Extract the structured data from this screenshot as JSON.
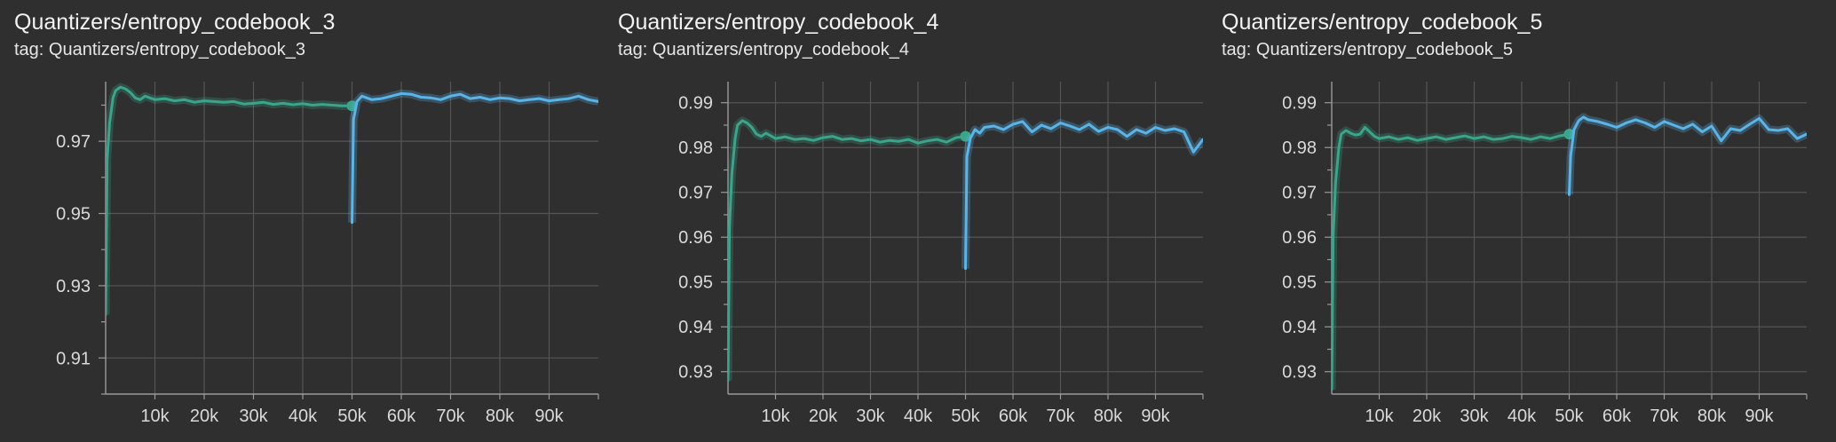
{
  "colors": {
    "background": "#2f2f2f",
    "grid": "#555555",
    "axis": "#9a9a9a",
    "run_a": "#3aa58a",
    "run_b": "#5ab4e8"
  },
  "chart_data": [
    {
      "type": "line",
      "title": "Quantizers/entropy_codebook_3",
      "tag": "tag: Quantizers/entropy_codebook_3",
      "xlim": [
        0,
        100000
      ],
      "ylim": [
        0.9,
        0.9865
      ],
      "x_ticks": [
        10000,
        20000,
        30000,
        40000,
        50000,
        60000,
        70000,
        80000,
        90000
      ],
      "x_tick_labels": [
        "10k",
        "20k",
        "30k",
        "40k",
        "50k",
        "60k",
        "70k",
        "80k",
        "90k"
      ],
      "y_major_ticks": [
        0.91,
        0.93,
        0.95,
        0.97
      ],
      "y_tick_labels": [
        "0.91",
        "0.93",
        "0.95",
        "0.97"
      ],
      "y_minor_ticks": [
        0.9,
        0.92,
        0.94,
        0.96,
        0.98
      ],
      "grid": true,
      "series": [
        {
          "color_key": "run_a",
          "x": [
            0,
            300,
            800,
            1500,
            2000,
            3000,
            4000,
            5000,
            6000,
            7000,
            8000,
            9000,
            10000,
            12000,
            14000,
            16000,
            18000,
            20000,
            22000,
            24000,
            26000,
            28000,
            30000,
            32000,
            34000,
            36000,
            38000,
            40000,
            42000,
            44000,
            46000,
            48000,
            50000
          ],
          "y": [
            0.922,
            0.965,
            0.975,
            0.982,
            0.984,
            0.985,
            0.9845,
            0.9835,
            0.982,
            0.9815,
            0.9825,
            0.982,
            0.9815,
            0.9818,
            0.9812,
            0.9815,
            0.9808,
            0.9812,
            0.981,
            0.9808,
            0.981,
            0.9803,
            0.9805,
            0.9808,
            0.9802,
            0.9805,
            0.9801,
            0.9804,
            0.98,
            0.9802,
            0.98,
            0.9798,
            0.9798
          ]
        },
        {
          "color_key": "run_b",
          "x": [
            50000,
            50300,
            51000,
            52000,
            53000,
            54000,
            56000,
            58000,
            60000,
            62000,
            64000,
            66000,
            68000,
            70000,
            72000,
            74000,
            76000,
            78000,
            80000,
            82000,
            84000,
            86000,
            88000,
            90000,
            92000,
            94000,
            96000,
            98000,
            100000
          ],
          "y": [
            0.9475,
            0.976,
            0.981,
            0.9825,
            0.982,
            0.9815,
            0.9818,
            0.9825,
            0.9832,
            0.983,
            0.9822,
            0.982,
            0.9815,
            0.9825,
            0.983,
            0.9818,
            0.9822,
            0.9815,
            0.982,
            0.9818,
            0.9812,
            0.9815,
            0.9818,
            0.9812,
            0.9815,
            0.9818,
            0.9825,
            0.9815,
            0.981
          ]
        }
      ]
    },
    {
      "type": "line",
      "title": "Quantizers/entropy_codebook_4",
      "tag": "tag: Quantizers/entropy_codebook_4",
      "xlim": [
        0,
        100000
      ],
      "ylim": [
        0.925,
        0.9947
      ],
      "x_ticks": [
        10000,
        20000,
        30000,
        40000,
        50000,
        60000,
        70000,
        80000,
        90000
      ],
      "x_tick_labels": [
        "10k",
        "20k",
        "30k",
        "40k",
        "50k",
        "60k",
        "70k",
        "80k",
        "90k"
      ],
      "y_major_ticks": [
        0.93,
        0.94,
        0.95,
        0.96,
        0.97,
        0.98,
        0.99
      ],
      "y_tick_labels": [
        "0.93",
        "0.94",
        "0.95",
        "0.96",
        "0.97",
        "0.98",
        "0.99"
      ],
      "y_minor_ticks": [
        0.935,
        0.945,
        0.955,
        0.965,
        0.975,
        0.985
      ],
      "grid": true,
      "series": [
        {
          "color_key": "run_a",
          "x": [
            0,
            300,
            800,
            1500,
            2000,
            3000,
            4000,
            5000,
            6000,
            7000,
            8000,
            9000,
            10000,
            12000,
            14000,
            16000,
            18000,
            20000,
            22000,
            24000,
            26000,
            28000,
            30000,
            32000,
            34000,
            36000,
            38000,
            40000,
            42000,
            44000,
            46000,
            48000,
            50000
          ],
          "y": [
            0.928,
            0.962,
            0.974,
            0.982,
            0.985,
            0.986,
            0.9855,
            0.9845,
            0.983,
            0.9825,
            0.9832,
            0.9826,
            0.982,
            0.9824,
            0.9818,
            0.982,
            0.9816,
            0.9822,
            0.9825,
            0.9818,
            0.982,
            0.9815,
            0.9818,
            0.9812,
            0.9816,
            0.9814,
            0.9818,
            0.981,
            0.9815,
            0.9818,
            0.9812,
            0.9822,
            0.9825
          ]
        },
        {
          "color_key": "run_b",
          "x": [
            50000,
            50300,
            51000,
            52000,
            53000,
            54000,
            56000,
            58000,
            60000,
            62000,
            64000,
            66000,
            68000,
            70000,
            72000,
            74000,
            76000,
            78000,
            80000,
            82000,
            84000,
            86000,
            88000,
            90000,
            92000,
            94000,
            96000,
            98000,
            100000
          ],
          "y": [
            0.953,
            0.978,
            0.982,
            0.984,
            0.9832,
            0.9845,
            0.9848,
            0.984,
            0.9852,
            0.9858,
            0.9835,
            0.985,
            0.9842,
            0.9855,
            0.9848,
            0.984,
            0.9852,
            0.9836,
            0.9845,
            0.984,
            0.9825,
            0.984,
            0.9832,
            0.9845,
            0.9838,
            0.9842,
            0.9835,
            0.979,
            0.9818
          ]
        }
      ]
    },
    {
      "type": "line",
      "title": "Quantizers/entropy_codebook_5",
      "tag": "tag: Quantizers/entropy_codebook_5",
      "xlim": [
        0,
        100000
      ],
      "ylim": [
        0.925,
        0.9947
      ],
      "x_ticks": [
        10000,
        20000,
        30000,
        40000,
        50000,
        60000,
        70000,
        80000,
        90000
      ],
      "x_tick_labels": [
        "10k",
        "20k",
        "30k",
        "40k",
        "50k",
        "60k",
        "70k",
        "80k",
        "90k"
      ],
      "y_major_ticks": [
        0.93,
        0.94,
        0.95,
        0.96,
        0.97,
        0.98,
        0.99
      ],
      "y_tick_labels": [
        "0.93",
        "0.94",
        "0.95",
        "0.96",
        "0.97",
        "0.98",
        "0.99"
      ],
      "y_minor_ticks": [
        0.935,
        0.945,
        0.955,
        0.965,
        0.975,
        0.985
      ],
      "grid": true,
      "series": [
        {
          "color_key": "run_a",
          "x": [
            0,
            300,
            800,
            1500,
            2000,
            3000,
            4000,
            5000,
            6000,
            7000,
            8000,
            9000,
            10000,
            12000,
            14000,
            16000,
            18000,
            20000,
            22000,
            24000,
            26000,
            28000,
            30000,
            32000,
            34000,
            36000,
            38000,
            40000,
            42000,
            44000,
            46000,
            48000,
            50000
          ],
          "y": [
            0.926,
            0.96,
            0.972,
            0.98,
            0.983,
            0.9838,
            0.9832,
            0.9828,
            0.983,
            0.9845,
            0.9835,
            0.9825,
            0.982,
            0.9824,
            0.9818,
            0.9822,
            0.9816,
            0.982,
            0.9824,
            0.9818,
            0.9822,
            0.9826,
            0.982,
            0.9824,
            0.9818,
            0.982,
            0.9825,
            0.9822,
            0.9818,
            0.9824,
            0.982,
            0.9826,
            0.983
          ]
        },
        {
          "color_key": "run_b",
          "x": [
            50000,
            50300,
            51000,
            52000,
            53000,
            54000,
            56000,
            58000,
            60000,
            62000,
            64000,
            66000,
            68000,
            70000,
            72000,
            74000,
            76000,
            78000,
            80000,
            82000,
            84000,
            86000,
            88000,
            90000,
            92000,
            94000,
            96000,
            98000,
            100000
          ],
          "y": [
            0.9695,
            0.978,
            0.984,
            0.986,
            0.9868,
            0.9862,
            0.9858,
            0.9852,
            0.9845,
            0.9855,
            0.9862,
            0.9855,
            0.9845,
            0.9858,
            0.985,
            0.9842,
            0.9852,
            0.9835,
            0.9848,
            0.9815,
            0.9842,
            0.9838,
            0.9852,
            0.9865,
            0.984,
            0.9838,
            0.9842,
            0.982,
            0.983
          ]
        }
      ]
    }
  ]
}
